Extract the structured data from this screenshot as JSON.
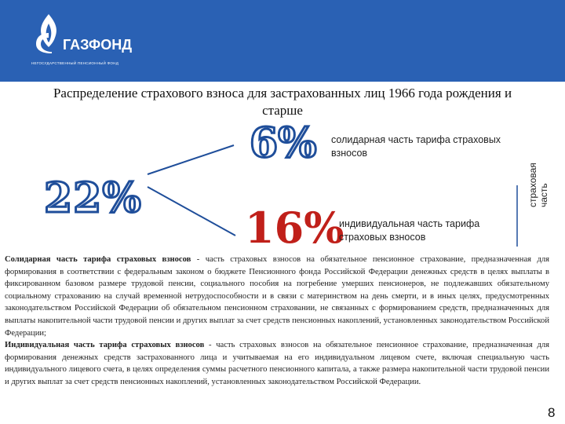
{
  "logo": {
    "name": "ГАЗФОНД",
    "subtitle": "НЕГОСУДАРСТВЕННЫЙ ПЕНСИОННЫЙ ФОНД"
  },
  "title": "Распределение страхового взноса для застрахованных лиц 1966 года рождения и старше",
  "total_rate": "22%",
  "solidary": {
    "rate": "6%",
    "label": "солидарная часть тарифа страховых взносов"
  },
  "individual": {
    "rate": "16%",
    "label": "индивидуальная часть тарифа страховых взносов"
  },
  "insurance_part_label": {
    "line1": "страховая",
    "line2": "часть"
  },
  "paragraph1": {
    "term": "Солидарная часть тарифа страховых взносов",
    "text": " - часть страховых взносов на обязательное пенсионное страхование, предназначенная для формирования в соответствии с федеральным законом о бюджете Пенсионного фонда Российской Федерации денежных средств в целях выплаты в фиксированном базовом размере трудовой пенсии, социального пособия на погребение умерших пенсионеров, не подлежавших обязательному социальному страхованию на случай временной нетрудоспособности и в связи с материнством на день смерти, и в иных целях, предусмотренных законодательством Российской Федерации об обязательном пенсионном страховании, не связанных с формированием средств, предназначенных для выплаты накопительной части трудовой пенсии и других выплат за счет средств пенсионных накоплений, установленных законодательством Российской Федерации;"
  },
  "paragraph2": {
    "term": "Индивидуальная часть тарифа страховых взносов",
    "text": " - часть страховых взносов на обязательное пенсионное страхование, предназначенная для формирования денежных средств застрахованного лица и учитываемая на его индивидуальном лицевом счете, включая специальную часть индивидуального лицевого счета, в целях определения суммы расчетного пенсионного капитала, а также размера накопительной части трудовой пенсии и других выплат за счет средств пенсионных накоплений, установленных законодательством Российской Федерации."
  },
  "page_number": "8",
  "colors": {
    "header": "#2a61b4",
    "accent_blue": "#1f4e9a",
    "accent_red": "#c0201a"
  }
}
